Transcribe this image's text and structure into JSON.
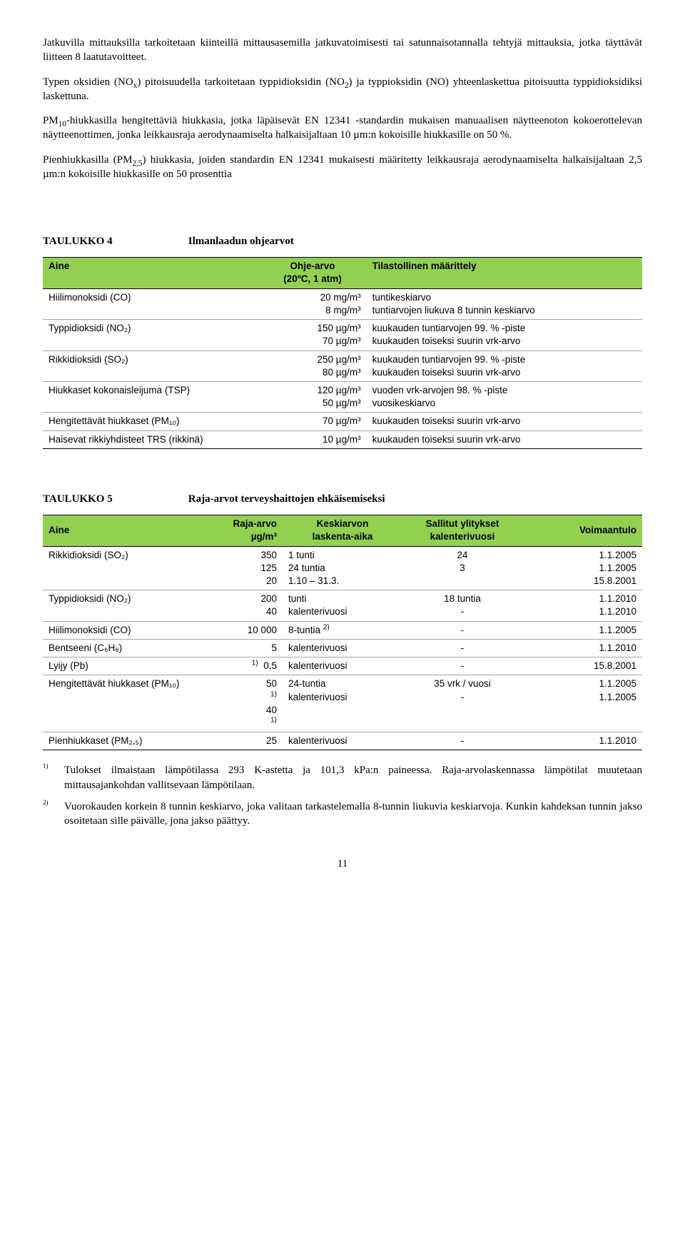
{
  "paragraphs": {
    "p1": "Jatkuvilla mittauksilla tarkoitetaan kiinteillä mittausasemilla jatkuvatoimisesti tai satunnaisotannalla tehtyjä mittauksia, jotka täyttävät liitteen 8 laatutavoitteet.",
    "p2_a": "Typen oksidien (NO",
    "p2_b": ") pitoisuudella tarkoitetaan typpidioksidin (NO",
    "p2_c": ") ja typpioksidin (NO) yhteenlaskettua pitoisuutta typpidioksidiksi laskettuna.",
    "p3_a": "PM",
    "p3_b": "-hiukkasilla hengitettäviä hiukkasia, jotka läpäisevät EN 12341 -standardin mukaisen manuaalisen näytteenoton kokoerottelevan näytteenottimen, jonka leikkausraja aerodynaamiselta halkaisijaltaan 10 µm:n kokoisille hiukkasille on 50 %.",
    "p4_a": "Pienhiukkasilla (PM",
    "p4_b": ") hiukkasia, joiden standardin EN 12341 mukaisesti määritetty leikkausraja aerodynaamiselta halkaisijaltaan 2,5 µm:n kokoisille hiukkasille on 50 prosenttia"
  },
  "table4": {
    "label": "TAULUKKO 4",
    "title": "Ilmanlaadun ohjearvot",
    "headers": {
      "c1": "Aine",
      "c2_a": "Ohje-arvo",
      "c2_b": "(20ºC, 1 atm)",
      "c3": "Tilastollinen määrittely"
    },
    "rows": [
      {
        "aine": "Hiilimonoksidi (CO)",
        "arvo": "20 mg/m³\n8 mg/m³",
        "maar": "tuntikeskiarvo\ntuntiarvojen liukuva 8 tunnin keskiarvo"
      },
      {
        "aine": "Typpidioksidi (NO₂)",
        "arvo": "150 µg/m³\n70 µg/m³",
        "maar": "kuukauden tuntiarvojen 99. % -piste\nkuukauden toiseksi suurin vrk-arvo"
      },
      {
        "aine": "Rikkidioksidi (SO₂)",
        "arvo": "250 µg/m³\n80 µg/m³",
        "maar": "kuukauden tuntiarvojen 99. % -piste\nkuukauden toiseksi suurin vrk-arvo"
      },
      {
        "aine": "Hiukkaset kokonaisleijuma (TSP)",
        "arvo": "120 µg/m³\n50 µg/m³",
        "maar": "vuoden vrk-arvojen 98. % -piste\nvuosikeskiarvo"
      },
      {
        "aine": "Hengitettävät hiukkaset (PM₁₀)",
        "arvo": "70 µg/m³",
        "maar": "kuukauden toiseksi suurin vrk-arvo"
      },
      {
        "aine": "Haisevat rikkiyhdisteet TRS (rikkinä)",
        "arvo": "10 µg/m³",
        "maar": "kuukauden toiseksi suurin vrk-arvo"
      }
    ]
  },
  "table5": {
    "label": "TAULUKKO 5",
    "title": "Raja-arvot terveyshaittojen ehkäisemiseksi",
    "headers": {
      "c1": "Aine",
      "c2": "Raja-arvo\nµg/m³",
      "c3": "Keskiarvon\nlaskenta-aika",
      "c4": "Sallitut ylitykset\nkalenterivuosi",
      "c5": "Voimaantulo"
    },
    "rows": [
      {
        "aine": "Rikkidioksidi (SO₂)",
        "raja": "350\n125\n20",
        "aika": "1 tunti\n24 tuntia\n1.10 – 31.3.",
        "ylit": "24\n3",
        "voim": "1.1.2005\n1.1.2005\n15.8.2001"
      },
      {
        "aine": "Typpidioksidi (NO₂)",
        "raja": "200\n40",
        "aika": "tunti\nkalenterivuosi",
        "ylit": "18 tuntia\n-",
        "voim": "1.1.2010\n1.1.2010"
      },
      {
        "aine": "Hiilimonoksidi (CO)",
        "raja": "10 000",
        "aika_html": "8-tuntia <sup>2)</sup>",
        "ylit": "-",
        "voim": "1.1.2005"
      },
      {
        "aine": "Bentseeni (C₆H₆)",
        "raja": "5",
        "aika": "kalenterivuosi",
        "ylit": "-",
        "voim": "1.1.2010"
      },
      {
        "aine": "Lyijy (Pb)",
        "raja_html": "<sup>1)</sup>&nbsp;&nbsp;0,5",
        "aika": "kalenterivuosi",
        "ylit": "-",
        "voim": "15.8.2001"
      },
      {
        "aine": "Hengitettävät hiukkaset (PM₁₀)",
        "raja_html": "50<br><sup>1)</sup><br>40<br><sup>1)</sup>",
        "aika": "24-tuntia\nkalenterivuosi",
        "ylit": "35 vrk / vuosi\n-",
        "voim": "1.1.2005\n1.1.2005"
      },
      {
        "aine": "Pienhiukkaset (PM₂,₅)",
        "raja": "25",
        "aika": "kalenterivuosi",
        "ylit": "-",
        "voim": "1.1.2010"
      }
    ]
  },
  "footnotes": {
    "f1": {
      "num": "1)",
      "txt": "Tulokset ilmaistaan lämpötilassa 293 K-astetta ja 101,3 kPa:n paineessa. Raja-arvolaskennassa lämpötilat muutetaan mittausajankohdan vallitsevaan lämpötilaan."
    },
    "f2": {
      "num": "2)",
      "txt": "Vuorokauden korkein 8 tunnin keskiarvo, joka valitaan tarkastelemalla 8-tunnin liukuvia keskiarvoja. Kunkin kahdeksan tunnin jakso osoitetaan sille päivälle, jona jakso päättyy."
    }
  },
  "pagenum": "11",
  "style": {
    "body_font": "Times New Roman",
    "body_size_pt": 12,
    "table_font": "Arial",
    "table_size_pt": 10.5,
    "header_bg": "#92d050",
    "border_color": "#a6a6a6",
    "border_strong": "#000000",
    "page_bg": "#ffffff",
    "text_color": "#000000"
  }
}
